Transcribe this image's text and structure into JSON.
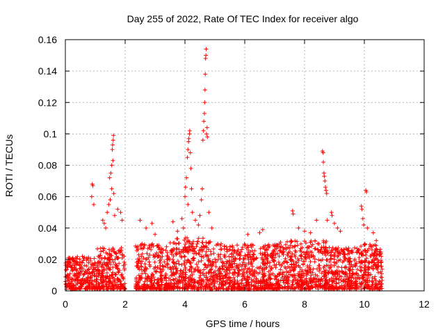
{
  "chart_data": {
    "type": "scatter",
    "title": "Day 255 of 2022, Rate Of TEC Index for receiver algo",
    "xlabel": "GPS time / hours",
    "ylabel": "ROTI / TECUs",
    "xlim": [
      0,
      12
    ],
    "ylim": [
      0,
      0.16
    ],
    "xticks": [
      0,
      2,
      4,
      6,
      8,
      10,
      12
    ],
    "yticks": [
      0,
      0.02,
      0.04,
      0.06,
      0.08,
      0.1,
      0.12,
      0.14,
      0.16
    ],
    "xtick_labels": [
      "0",
      "2",
      "4",
      "6",
      "8",
      "10",
      "12"
    ],
    "ytick_labels": [
      "0",
      "0.02",
      "0.04",
      "0.06",
      "0.08",
      "0.1",
      "0.12",
      "0.14",
      "0.16"
    ],
    "grid": true,
    "marker": "plus",
    "color": "#ff0000",
    "series": [
      {
        "points": [
          [
            0.9,
            0.068
          ],
          [
            0.92,
            0.067
          ],
          [
            0.88,
            0.06
          ],
          [
            0.95,
            0.055
          ],
          [
            1.25,
            0.045
          ],
          [
            1.3,
            0.043
          ],
          [
            1.35,
            0.04
          ],
          [
            1.4,
            0.05
          ],
          [
            1.45,
            0.055
          ],
          [
            1.5,
            0.058
          ],
          [
            1.48,
            0.072
          ],
          [
            1.52,
            0.075
          ],
          [
            1.55,
            0.08
          ],
          [
            1.57,
            0.09
          ],
          [
            1.58,
            0.093
          ],
          [
            1.6,
            0.096
          ],
          [
            1.61,
            0.099
          ],
          [
            1.59,
            0.083
          ],
          [
            1.62,
            0.062
          ],
          [
            1.55,
            0.065
          ],
          [
            1.65,
            0.048
          ],
          [
            1.75,
            0.052
          ],
          [
            1.85,
            0.05
          ],
          [
            1.9,
            0.045
          ],
          [
            2.5,
            0.045
          ],
          [
            2.7,
            0.04
          ],
          [
            2.9,
            0.043
          ],
          [
            3.0,
            0.036
          ],
          [
            3.6,
            0.044
          ],
          [
            3.75,
            0.038
          ],
          [
            3.9,
            0.046
          ],
          [
            3.95,
            0.04
          ],
          [
            4.0,
            0.06
          ],
          [
            4.02,
            0.066
          ],
          [
            4.05,
            0.072
          ],
          [
            4.08,
            0.085
          ],
          [
            4.1,
            0.09
          ],
          [
            4.12,
            0.095
          ],
          [
            4.13,
            0.097
          ],
          [
            4.15,
            0.1
          ],
          [
            4.16,
            0.102
          ],
          [
            4.18,
            0.088
          ],
          [
            4.2,
            0.078
          ],
          [
            4.22,
            0.065
          ],
          [
            4.1,
            0.055
          ],
          [
            4.25,
            0.05
          ],
          [
            4.35,
            0.045
          ],
          [
            4.45,
            0.042
          ],
          [
            4.5,
            0.048
          ],
          [
            4.55,
            0.058
          ],
          [
            4.58,
            0.065
          ],
          [
            4.6,
            0.096
          ],
          [
            4.62,
            0.102
          ],
          [
            4.63,
            0.108
          ],
          [
            4.65,
            0.113
          ],
          [
            4.66,
            0.12
          ],
          [
            4.67,
            0.128
          ],
          [
            4.68,
            0.138
          ],
          [
            4.69,
            0.148
          ],
          [
            4.7,
            0.15
          ],
          [
            4.71,
            0.154
          ],
          [
            4.72,
            0.1
          ],
          [
            4.74,
            0.104
          ],
          [
            4.75,
            0.098
          ],
          [
            4.8,
            0.05
          ],
          [
            4.9,
            0.04
          ],
          [
            6.1,
            0.036
          ],
          [
            6.5,
            0.037
          ],
          [
            6.6,
            0.039
          ],
          [
            7.2,
            0.031
          ],
          [
            7.6,
            0.051
          ],
          [
            7.62,
            0.049
          ],
          [
            7.8,
            0.04
          ],
          [
            8.0,
            0.038
          ],
          [
            8.2,
            0.037
          ],
          [
            8.4,
            0.045
          ],
          [
            8.6,
            0.089
          ],
          [
            8.62,
            0.088
          ],
          [
            8.63,
            0.082
          ],
          [
            8.65,
            0.075
          ],
          [
            8.66,
            0.073
          ],
          [
            8.68,
            0.07
          ],
          [
            8.7,
            0.066
          ],
          [
            8.72,
            0.064
          ],
          [
            8.74,
            0.062
          ],
          [
            8.76,
            0.045
          ],
          [
            8.9,
            0.05
          ],
          [
            8.92,
            0.048
          ],
          [
            9.0,
            0.043
          ],
          [
            9.1,
            0.04
          ],
          [
            9.2,
            0.038
          ],
          [
            9.9,
            0.054
          ],
          [
            9.92,
            0.052
          ],
          [
            9.95,
            0.046
          ],
          [
            9.98,
            0.042
          ],
          [
            10.05,
            0.064
          ],
          [
            10.07,
            0.063
          ],
          [
            10.1,
            0.04
          ],
          [
            10.3,
            0.037
          ],
          [
            10.4,
            0.032
          ],
          [
            10.5,
            0.025
          ],
          [
            10.55,
            0.018
          ]
        ]
      }
    ],
    "dense_regions": [
      [
        0.0,
        1.05,
        0.001,
        0.022
      ],
      [
        1.05,
        2.0,
        0.001,
        0.028
      ],
      [
        2.35,
        3.4,
        0.001,
        0.03
      ],
      [
        3.4,
        4.9,
        0.001,
        0.034
      ],
      [
        4.9,
        6.2,
        0.001,
        0.03
      ],
      [
        6.2,
        7.4,
        0.001,
        0.03
      ],
      [
        7.4,
        8.8,
        0.001,
        0.032
      ],
      [
        8.8,
        9.8,
        0.001,
        0.028
      ],
      [
        9.8,
        10.6,
        0.001,
        0.03
      ]
    ]
  }
}
